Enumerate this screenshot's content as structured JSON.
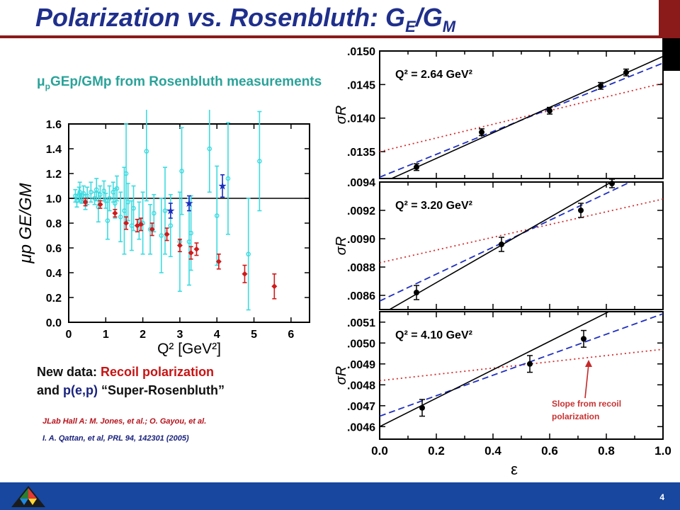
{
  "slide": {
    "title": "Polarization vs. Rosenbluth:  G",
    "title_sub_e": "E",
    "title_slash": "/G",
    "title_sub_m": "M",
    "subhead_mu": "μ",
    "subhead_p": "p",
    "subhead_text": "GEp/GMp from Rosenbluth measurements",
    "newdata_line1_a": "New data: ",
    "newdata_line1_b": "Recoil polarization",
    "newdata_line2_a": "and ",
    "newdata_line2_b": "p(e,p)",
    "newdata_line2_c": " “Super-Rosenbluth”",
    "ref1": "JLab Hall A: M. Jones, et al.; O. Gayou, et al.",
    "ref2": "I. A. Qattan, et al, PRL 94, 142301 (2005)",
    "annotation_line1": "Slope from recoil",
    "annotation_line2": "polarization",
    "page_number": "4"
  },
  "chart_data": [
    {
      "type": "scatter",
      "xlabel": "Q² [GeV²]",
      "ylabel": "μp GE/GM",
      "xlim": [
        0,
        6.5
      ],
      "ylim": [
        0,
        1.6
      ],
      "xticks": [
        "0",
        "1",
        "2",
        "3",
        "4",
        "5",
        "6"
      ],
      "yticks": [
        "0.0",
        "0.2",
        "0.4",
        "0.6",
        "0.8",
        "1.0",
        "1.2",
        "1.4",
        "1.6"
      ],
      "reference_line": 1.0,
      "colors": {
        "rosenbluth": "#3ddbe0",
        "qattan": "#d11a1a",
        "polarization": "#1b2fbf"
      },
      "series": [
        {
          "style": "cyan",
          "points": [
            [
              0.18,
              1.02,
              0.05
            ],
            [
              0.22,
              0.98,
              0.05
            ],
            [
              0.28,
              1.03,
              0.06
            ],
            [
              0.3,
              1.05,
              0.08
            ],
            [
              0.35,
              1.0,
              0.04
            ],
            [
              0.4,
              1.04,
              0.06
            ],
            [
              0.45,
              0.97,
              0.06
            ],
            [
              0.5,
              1.02,
              0.07
            ],
            [
              0.6,
              1.05,
              0.08
            ],
            [
              0.7,
              1.0,
              0.05
            ],
            [
              0.75,
              1.07,
              0.09
            ],
            [
              0.8,
              0.93,
              0.12
            ],
            [
              0.85,
              1.03,
              0.07
            ],
            [
              0.95,
              1.06,
              0.08
            ],
            [
              1.0,
              0.98,
              0.06
            ],
            [
              1.05,
              0.82,
              0.15
            ],
            [
              1.1,
              1.0,
              0.1
            ],
            [
              1.2,
              1.05,
              0.08
            ],
            [
              1.25,
              0.96,
              0.12
            ],
            [
              1.3,
              1.08,
              0.1
            ],
            [
              1.4,
              0.85,
              0.2
            ],
            [
              1.5,
              0.9,
              0.35
            ],
            [
              1.55,
              1.2,
              0.4
            ],
            [
              1.6,
              0.97,
              0.15
            ],
            [
              1.7,
              0.78,
              0.2
            ],
            [
              1.75,
              0.92,
              0.18
            ],
            [
              1.9,
              0.82,
              0.15
            ],
            [
              2.0,
              0.8,
              0.25
            ],
            [
              2.1,
              1.38,
              0.4
            ],
            [
              2.2,
              0.75,
              0.2
            ],
            [
              2.3,
              0.88,
              0.15
            ],
            [
              2.5,
              0.7,
              0.3
            ],
            [
              2.6,
              0.9,
              0.35
            ],
            [
              2.75,
              0.78,
              0.25
            ],
            [
              3.0,
              0.65,
              0.4
            ],
            [
              3.05,
              1.22,
              0.35
            ],
            [
              3.25,
              0.65,
              0.35
            ],
            [
              3.3,
              0.72,
              0.3
            ],
            [
              3.8,
              1.4,
              0.35
            ],
            [
              4.0,
              0.86,
              0.4
            ],
            [
              4.3,
              1.16,
              0.45
            ],
            [
              4.85,
              0.55,
              0.45
            ],
            [
              5.15,
              1.3,
              0.4
            ]
          ]
        },
        {
          "style": "red",
          "points": [
            [
              0.45,
              0.97,
              0.03
            ],
            [
              0.85,
              0.95,
              0.03
            ],
            [
              1.25,
              0.88,
              0.03
            ],
            [
              1.55,
              0.8,
              0.05
            ],
            [
              1.85,
              0.78,
              0.05
            ],
            [
              1.95,
              0.79,
              0.05
            ],
            [
              2.25,
              0.75,
              0.05
            ],
            [
              2.65,
              0.71,
              0.05
            ],
            [
              3.0,
              0.62,
              0.05
            ],
            [
              3.3,
              0.56,
              0.05
            ],
            [
              3.45,
              0.59,
              0.05
            ],
            [
              4.05,
              0.49,
              0.06
            ],
            [
              4.75,
              0.39,
              0.07
            ],
            [
              5.55,
              0.29,
              0.1
            ]
          ]
        },
        {
          "style": "blue",
          "points": [
            [
              2.75,
              0.9,
              0.06
            ],
            [
              3.25,
              0.96,
              0.06
            ],
            [
              4.15,
              1.1,
              0.09
            ]
          ]
        }
      ]
    },
    {
      "type": "line",
      "title": "Q² = 2.64 GeV²",
      "xlabel": "ε",
      "ylabel": "σR",
      "xlim": [
        0.0,
        1.0
      ],
      "ylim": [
        0.0131,
        0.015
      ],
      "yticks": [
        ".0135",
        ".0140",
        ".0145",
        ".0150"
      ],
      "points": [
        [
          0.13,
          0.01327,
          5e-05
        ],
        [
          0.36,
          0.01379,
          5e-05
        ],
        [
          0.6,
          0.01411,
          5e-05
        ],
        [
          0.78,
          0.01448,
          5e-05
        ],
        [
          0.87,
          0.01468,
          5e-05
        ]
      ],
      "lines": {
        "rosenbluth_fit": [
          [
            0.0,
            0.01302
          ],
          [
            1.0,
            0.01492
          ]
        ],
        "super_rosenbluth": [
          [
            0.0,
            0.01312
          ],
          [
            1.0,
            0.01482
          ]
        ],
        "recoil_polarization": [
          [
            0.0,
            0.0135
          ],
          [
            1.0,
            0.01452
          ]
        ]
      }
    },
    {
      "type": "line",
      "title": "Q² = 3.20 GeV²",
      "xlabel": "ε",
      "ylabel": "σR",
      "xlim": [
        0.0,
        1.0
      ],
      "ylim": [
        0.0085,
        0.0094
      ],
      "yticks": [
        ".0086",
        ".0088",
        ".0090",
        ".0092",
        ".0094"
      ],
      "points": [
        [
          0.13,
          0.00862,
          5e-05
        ],
        [
          0.43,
          0.00896,
          5e-05
        ],
        [
          0.71,
          0.0092,
          5e-05
        ],
        [
          0.82,
          0.00939,
          3e-05
        ]
      ],
      "lines": {
        "rosenbluth_fit": [
          [
            0.0,
            0.00846
          ],
          [
            1.0,
            0.00961
          ]
        ],
        "super_rosenbluth": [
          [
            0.0,
            0.00856
          ],
          [
            1.0,
            0.00951
          ]
        ],
        "recoil_polarization": [
          [
            0.0,
            0.00883
          ],
          [
            1.0,
            0.00928
          ]
        ]
      }
    },
    {
      "type": "line",
      "title": "Q² = 4.10 GeV²",
      "xlabel": "ε",
      "ylabel": "σR",
      "xticks": [
        "0.0",
        "0.2",
        "0.4",
        "0.6",
        "0.8",
        "1.0"
      ],
      "xlim": [
        0.0,
        1.0
      ],
      "ylim": [
        0.00454,
        0.00515
      ],
      "yticks": [
        ".0046",
        ".0047",
        ".0048",
        ".0049",
        ".0050",
        ".0051"
      ],
      "points": [
        [
          0.15,
          0.00469,
          4e-05
        ],
        [
          0.53,
          0.0049,
          4e-05
        ],
        [
          0.72,
          0.00502,
          4e-05
        ]
      ],
      "lines": {
        "rosenbluth_fit": [
          [
            0.0,
            0.0046
          ],
          [
            1.0,
            0.00528
          ]
        ],
        "super_rosenbluth": [
          [
            0.0,
            0.00465
          ],
          [
            1.0,
            0.00514
          ]
        ],
        "recoil_polarization": [
          [
            0.0,
            0.00482
          ],
          [
            1.0,
            0.00497
          ]
        ]
      }
    }
  ]
}
